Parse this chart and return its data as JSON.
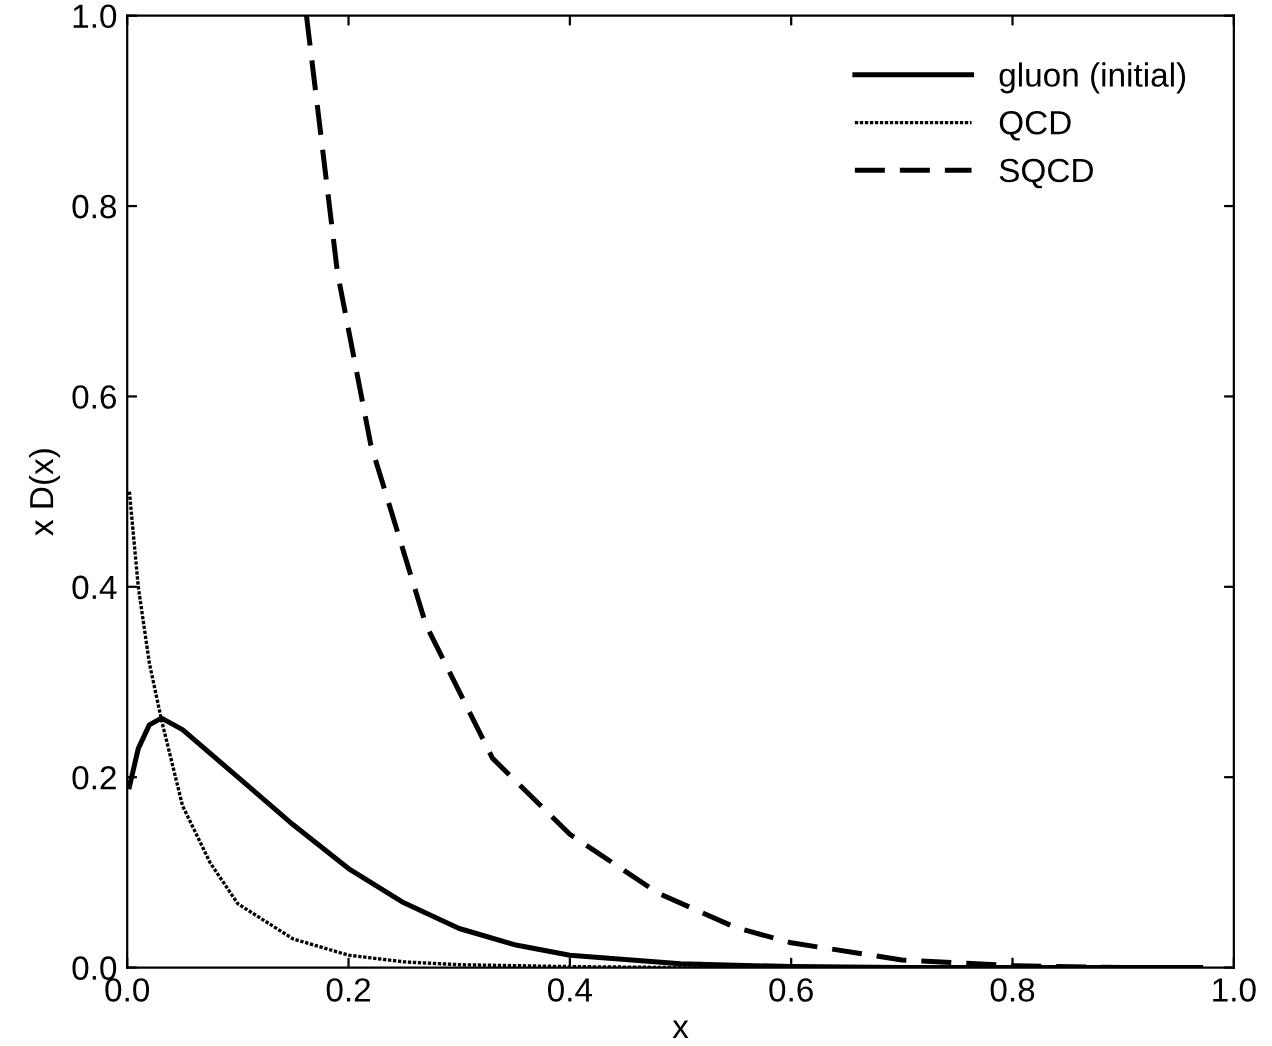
{
  "chart_data": {
    "type": "line",
    "xlabel": "x",
    "ylabel": "x D(x)",
    "xlim": [
      0.0,
      1.0
    ],
    "ylim": [
      0.0,
      1.0
    ],
    "xticks": [
      {
        "value": 0,
        "label": "0.0"
      },
      0.2,
      0.4,
      0.6,
      0.8,
      {
        "value": 1,
        "label": "1.0"
      }
    ],
    "yticks": [
      {
        "value": 0,
        "label": "0.0"
      },
      0.2,
      0.4,
      0.6,
      0.8,
      {
        "value": 1,
        "label": "1.0"
      }
    ],
    "legend": "top right",
    "grid": false,
    "series": [
      {
        "name": "gluon (initial)",
        "color": "#000000",
        "line_style": "solid",
        "x": [
          0.002,
          0.01,
          0.02,
          0.031,
          0.05,
          0.08,
          0.11,
          0.15,
          0.2,
          0.25,
          0.3,
          0.35,
          0.4,
          0.5,
          0.6,
          0.7,
          0.8,
          0.97
        ],
        "values": [
          0.19,
          0.23,
          0.255,
          0.262,
          0.25,
          0.22,
          0.19,
          0.15,
          0.104,
          0.068,
          0.041,
          0.024,
          0.013,
          0.004,
          0.001,
          0.0,
          0.0,
          0.0
        ]
      },
      {
        "name": "QCD",
        "color": "#000000",
        "line_style": "dotted",
        "x": [
          0.002,
          0.01,
          0.02,
          0.031,
          0.05,
          0.075,
          0.1,
          0.15,
          0.2,
          0.25,
          0.3,
          0.4,
          0.5,
          0.6
        ],
        "values": [
          0.5,
          0.4,
          0.32,
          0.26,
          0.17,
          0.11,
          0.067,
          0.03,
          0.013,
          0.006,
          0.003,
          0.001,
          0.0,
          0.0
        ]
      },
      {
        "name": "SQCD",
        "color": "#000000",
        "line_style": "dashed",
        "x": [
          0.162,
          0.19,
          0.22,
          0.27,
          0.33,
          0.4,
          0.48,
          0.55,
          0.6,
          0.7,
          0.8,
          0.9,
          0.97
        ],
        "values": [
          1.0,
          0.73,
          0.55,
          0.36,
          0.22,
          0.14,
          0.078,
          0.042,
          0.026,
          0.008,
          0.002,
          0.0,
          0.0
        ]
      }
    ]
  }
}
